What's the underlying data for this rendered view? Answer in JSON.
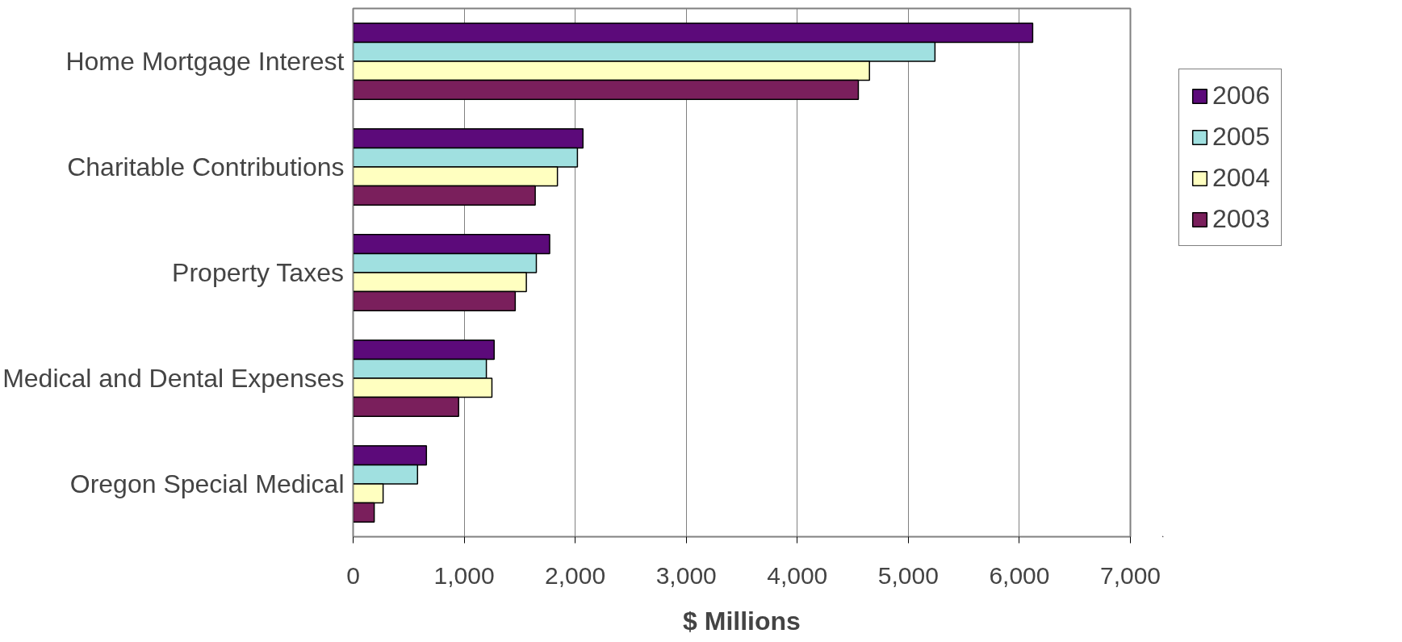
{
  "chart_data": {
    "type": "bar",
    "orientation": "horizontal",
    "xlabel": "$ Millions",
    "categories": [
      "Home Mortgage Interest",
      "Charitable Contributions",
      "Property Taxes",
      "Medical and Dental Expenses",
      "Oregon Special Medical"
    ],
    "series": [
      {
        "name": "2006",
        "color": "#5c0a7a",
        "values": [
          6120,
          2070,
          1770,
          1270,
          660
        ]
      },
      {
        "name": "2005",
        "color": "#a0e0e0",
        "values": [
          5240,
          2020,
          1650,
          1200,
          580
        ]
      },
      {
        "name": "2004",
        "color": "#ffffc0",
        "values": [
          4650,
          1840,
          1560,
          1250,
          270
        ]
      },
      {
        "name": "2003",
        "color": "#7a1f5c",
        "values": [
          4550,
          1640,
          1460,
          950,
          190
        ]
      }
    ],
    "xlim": [
      0,
      7000
    ],
    "xticks": [
      {
        "value": 0,
        "label": "0"
      },
      {
        "value": 1000,
        "label": "1,000"
      },
      {
        "value": 2000,
        "label": "2,000"
      },
      {
        "value": 3000,
        "label": "3,000"
      },
      {
        "value": 4000,
        "label": "4,000"
      },
      {
        "value": 5000,
        "label": "5,000"
      },
      {
        "value": 6000,
        "label": "6,000"
      },
      {
        "value": 7000,
        "label": "7,000"
      }
    ],
    "grid": "x",
    "legend": "right"
  }
}
